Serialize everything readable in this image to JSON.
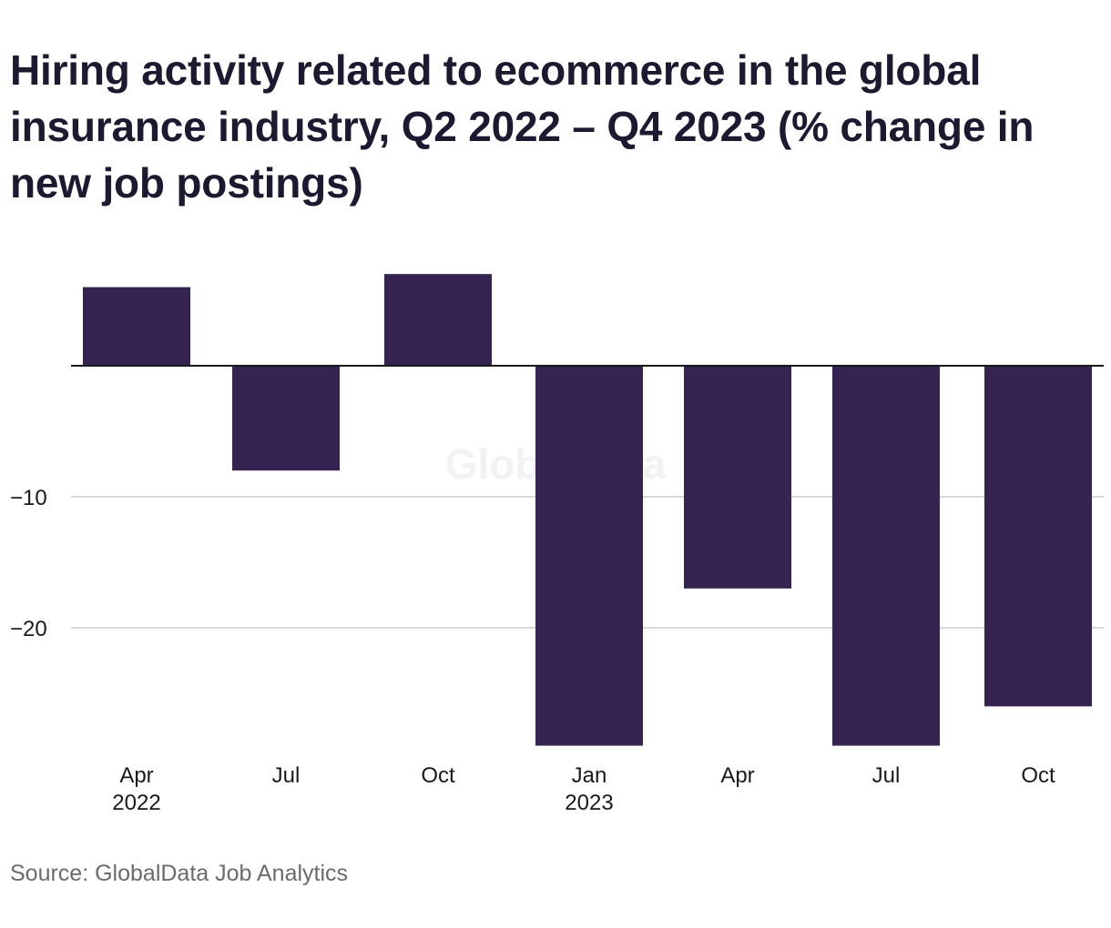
{
  "title": "Hiring activity related to ecommerce in the global insurance industry, Q2 2022 – Q4 2023 (% change in new job postings)",
  "source": "Source: GlobalData Job Analytics",
  "watermark": "GlobalData",
  "colors": {
    "bar": "#352451",
    "gridline": "#d9d9d9",
    "baseline": "#1a1a1a",
    "tick_text": "#1a1a1a"
  },
  "chart_data": {
    "type": "bar",
    "categories": [
      "Apr 2022",
      "Jul 2022",
      "Oct 2022",
      "Jan 2023",
      "Apr 2023",
      "Jul 2023",
      "Oct 2023"
    ],
    "tick_labels": [
      {
        "line1": "Apr",
        "line2": "2022"
      },
      {
        "line1": "Jul",
        "line2": ""
      },
      {
        "line1": "Oct",
        "line2": ""
      },
      {
        "line1": "Jan",
        "line2": "2023"
      },
      {
        "line1": "Apr",
        "line2": ""
      },
      {
        "line1": "Jul",
        "line2": ""
      },
      {
        "line1": "Oct",
        "line2": ""
      }
    ],
    "values": [
      6.0,
      -8.0,
      7.0,
      -29.0,
      -17.0,
      -29.0,
      -26.0
    ],
    "yticks": [
      -10,
      -20
    ],
    "ytick_labels": [
      "−10",
      "−20"
    ],
    "ylim": [
      -29,
      7
    ],
    "xlabel": "",
    "ylabel": "",
    "grid": true,
    "legend": false
  }
}
